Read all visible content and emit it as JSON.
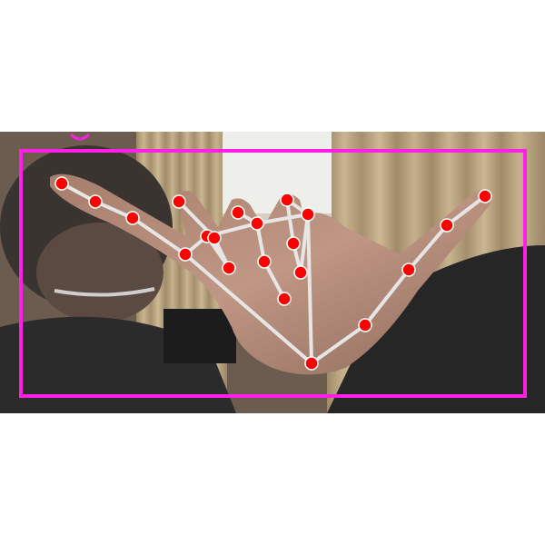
{
  "image": {
    "subject": "hand-keypoint-overlay",
    "colors": {
      "background": "#ffffff",
      "bounding_box": "#ff1fe6",
      "keypoint": "#ff0000",
      "skeleton": "#e6e6e6",
      "curtain": "#b8a27f",
      "wall": "#eeeeea",
      "skin": "#b08a78",
      "shirt": "#2b2b2b"
    },
    "keypoint_count": 21,
    "bounding_box_count": 1
  }
}
